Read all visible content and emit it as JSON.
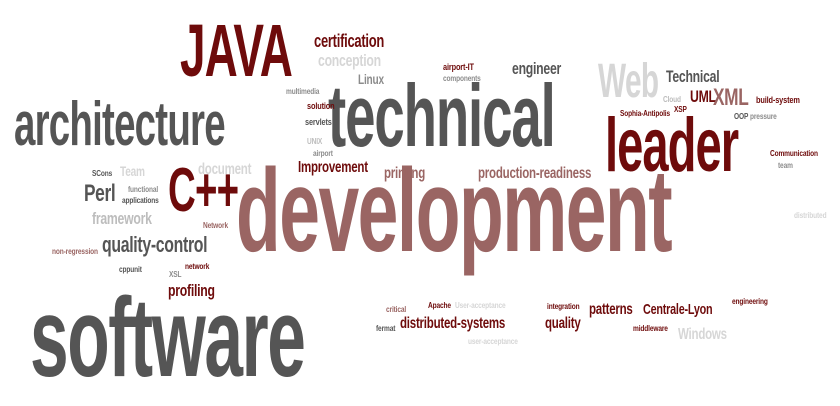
{
  "palette": {
    "maroon": "#6e0b0b",
    "rose": "#9a6563",
    "charcoal": "#555555",
    "gray": "#8c8c8c",
    "light": "#bdbdbd",
    "pale": "#d6d6d6"
  },
  "words": [
    {
      "id": "development",
      "text": "development",
      "color": "rose"
    },
    {
      "id": "software",
      "text": "software",
      "color": "charcoal"
    },
    {
      "id": "technical-big",
      "text": "technical",
      "color": "charcoal"
    },
    {
      "id": "architecture",
      "text": "architecture",
      "color": "charcoal"
    },
    {
      "id": "leader",
      "text": "leader",
      "color": "maroon"
    },
    {
      "id": "java",
      "text": "JAVA",
      "color": "maroon"
    },
    {
      "id": "cpp",
      "text": "C++",
      "color": "maroon"
    },
    {
      "id": "web",
      "text": "Web",
      "color": "pale"
    },
    {
      "id": "certification",
      "text": "certification",
      "color": "maroon"
    },
    {
      "id": "conception",
      "text": "conception",
      "color": "pale"
    },
    {
      "id": "linux",
      "text": "Linux",
      "color": "gray"
    },
    {
      "id": "airport-it",
      "text": "airport-IT",
      "color": "maroon"
    },
    {
      "id": "components",
      "text": "components",
      "color": "gray"
    },
    {
      "id": "engineer",
      "text": "engineer",
      "color": "charcoal"
    },
    {
      "id": "technical-small",
      "text": "Technical",
      "color": "charcoal"
    },
    {
      "id": "uml",
      "text": "UML",
      "color": "maroon"
    },
    {
      "id": "xml",
      "text": "XML",
      "color": "rose"
    },
    {
      "id": "build-system",
      "text": "build-system",
      "color": "maroon"
    },
    {
      "id": "cloud",
      "text": "Cloud",
      "color": "light"
    },
    {
      "id": "xsp",
      "text": "XSP",
      "color": "maroon"
    },
    {
      "id": "sophia-antipolis",
      "text": "Sophia-Antipolis",
      "color": "maroon"
    },
    {
      "id": "oop",
      "text": "OOP",
      "color": "charcoal"
    },
    {
      "id": "pressure",
      "text": "pressure",
      "color": "gray"
    },
    {
      "id": "multimedia",
      "text": "multimedia",
      "color": "gray"
    },
    {
      "id": "solution",
      "text": "solution",
      "color": "maroon"
    },
    {
      "id": "servlets",
      "text": "servlets",
      "color": "charcoal"
    },
    {
      "id": "unix",
      "text": "UNIX",
      "color": "light"
    },
    {
      "id": "airport",
      "text": "airport",
      "color": "gray"
    },
    {
      "id": "communication",
      "text": "Communication",
      "color": "maroon"
    },
    {
      "id": "team-small",
      "text": "team",
      "color": "gray"
    },
    {
      "id": "scons",
      "text": "SCons",
      "color": "charcoal"
    },
    {
      "id": "team",
      "text": "Team",
      "color": "pale"
    },
    {
      "id": "document",
      "text": "document",
      "color": "pale"
    },
    {
      "id": "improvement",
      "text": "Improvement",
      "color": "maroon"
    },
    {
      "id": "printing",
      "text": "printing",
      "color": "rose"
    },
    {
      "id": "production-readiness",
      "text": "production-readiness",
      "color": "rose"
    },
    {
      "id": "perl",
      "text": "Perl",
      "color": "charcoal"
    },
    {
      "id": "functional",
      "text": "functional",
      "color": "gray"
    },
    {
      "id": "applications",
      "text": "applications",
      "color": "charcoal"
    },
    {
      "id": "framework",
      "text": "framework",
      "color": "light"
    },
    {
      "id": "network-small",
      "text": "Network",
      "color": "rose"
    },
    {
      "id": "distributed",
      "text": "distributed",
      "color": "pale"
    },
    {
      "id": "quality-control",
      "text": "quality-control",
      "color": "charcoal"
    },
    {
      "id": "non-regression",
      "text": "non-regression",
      "color": "rose"
    },
    {
      "id": "cppunit",
      "text": "cppunit",
      "color": "charcoal"
    },
    {
      "id": "network",
      "text": "network",
      "color": "maroon"
    },
    {
      "id": "xsl",
      "text": "XSL",
      "color": "gray"
    },
    {
      "id": "profiling",
      "text": "profiling",
      "color": "maroon"
    },
    {
      "id": "critical",
      "text": "critical",
      "color": "rose"
    },
    {
      "id": "apache",
      "text": "Apache",
      "color": "maroon"
    },
    {
      "id": "user-acceptance",
      "text": "User-acceptance",
      "color": "pale"
    },
    {
      "id": "fermat",
      "text": "fermat",
      "color": "charcoal"
    },
    {
      "id": "distributed-systems",
      "text": "distributed-systems",
      "color": "maroon"
    },
    {
      "id": "user-acceptance-2",
      "text": "user-acceptance",
      "color": "pale"
    },
    {
      "id": "integration",
      "text": "integration",
      "color": "maroon"
    },
    {
      "id": "quality",
      "text": "quality",
      "color": "maroon"
    },
    {
      "id": "patterns",
      "text": "patterns",
      "color": "maroon"
    },
    {
      "id": "centrale-lyon",
      "text": "Centrale-Lyon",
      "color": "maroon"
    },
    {
      "id": "middleware",
      "text": "middleware",
      "color": "maroon"
    },
    {
      "id": "windows",
      "text": "Windows",
      "color": "pale"
    },
    {
      "id": "engineering",
      "text": "engineering",
      "color": "maroon"
    }
  ]
}
